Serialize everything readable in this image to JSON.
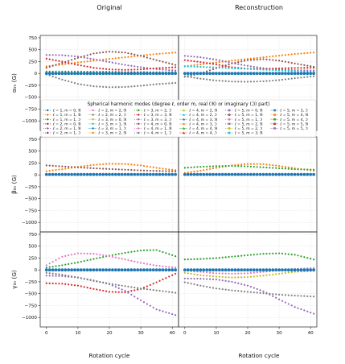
{
  "figure": {
    "column_titles": [
      "Original",
      "Reconstruction"
    ],
    "row_ylabels": [
      "αₗₘ (G)",
      "βₗₘ (G)",
      "γₗₘ (G)"
    ],
    "xlabel": "Rotation cycle",
    "legend_title": "Spherical harmonic modes (degree ℓ, order m, real (ℜ) or imaginary (ℑ) part)"
  },
  "legend": {
    "placement": "inside top row, lower half, spanning both columns",
    "entries": [
      {
        "label": "ℓ = 1, m = 0, ℜ",
        "color": "#1f77b4"
      },
      {
        "label": "ℓ = 1, m = 1, ℜ",
        "color": "#ff7f0e"
      },
      {
        "label": "ℓ = 1, m = 1, ℑ",
        "color": "#2ca02c"
      },
      {
        "label": "ℓ = 2, m = 0, ℜ",
        "color": "#d62728"
      },
      {
        "label": "ℓ = 2, m = 1, ℜ",
        "color": "#9467bd"
      },
      {
        "label": "ℓ = 2, m = 1, ℑ",
        "color": "#8c564b"
      },
      {
        "label": "ℓ = 2, m = 2, ℜ",
        "color": "#e377c2"
      },
      {
        "label": "ℓ = 2, m = 2, ℑ",
        "color": "#7f7f7f"
      },
      {
        "label": "ℓ = 3, m = 0, ℜ",
        "color": "#bcbd22"
      },
      {
        "label": "ℓ = 3, m = 1, ℜ",
        "color": "#17becf"
      },
      {
        "label": "ℓ = 3, m = 1, ℑ",
        "color": "#1f77b4"
      },
      {
        "label": "ℓ = 3, m = 2, ℜ",
        "color": "#ff7f0e"
      },
      {
        "label": "ℓ = 3, m = 2, ℑ",
        "color": "#2ca02c"
      },
      {
        "label": "ℓ = 3, m = 3, ℜ",
        "color": "#d62728"
      },
      {
        "label": "ℓ = 3, m = 3, ℑ",
        "color": "#9467bd"
      },
      {
        "label": "ℓ = 4, m = 0, ℜ",
        "color": "#8c564b"
      },
      {
        "label": "ℓ = 4, m = 1, ℜ",
        "color": "#e377c2"
      },
      {
        "label": "ℓ = 4, m = 1, ℑ",
        "color": "#7f7f7f"
      },
      {
        "label": "ℓ = 4, m = 2, ℜ",
        "color": "#bcbd22"
      },
      {
        "label": "ℓ = 4, m = 2, ℑ",
        "color": "#17becf"
      },
      {
        "label": "ℓ = 4, m = 3, ℜ",
        "color": "#1f77b4"
      },
      {
        "label": "ℓ = 4, m = 3, ℑ",
        "color": "#ff7f0e"
      },
      {
        "label": "ℓ = 4, m = 4, ℜ",
        "color": "#2ca02c"
      },
      {
        "label": "ℓ = 4, m = 4, ℑ",
        "color": "#d62728"
      },
      {
        "label": "ℓ = 5, m = 0, ℜ",
        "color": "#9467bd"
      },
      {
        "label": "ℓ = 5, m = 1, ℜ",
        "color": "#8c564b"
      },
      {
        "label": "ℓ = 5, m = 1, ℑ",
        "color": "#e377c2"
      },
      {
        "label": "ℓ = 5, m = 2, ℜ",
        "color": "#7f7f7f"
      },
      {
        "label": "ℓ = 5, m = 2, ℑ",
        "color": "#bcbd22"
      },
      {
        "label": "ℓ = 5, m = 3, ℜ",
        "color": "#17becf"
      },
      {
        "label": "ℓ = 5, m = 3, ℑ",
        "color": "#1f77b4"
      },
      {
        "label": "ℓ = 5, m = 4, ℜ",
        "color": "#ff7f0e"
      },
      {
        "label": "ℓ = 5, m = 4, ℑ",
        "color": "#2ca02c"
      },
      {
        "label": "ℓ = 5, m = 5, ℜ",
        "color": "#d62728"
      },
      {
        "label": "ℓ = 5, m = 5, ℑ",
        "color": "#9467bd"
      }
    ]
  },
  "chart_data": [
    {
      "type": "scatter",
      "panel": "alpha-original",
      "title": "Original",
      "ylabel": "αₗₘ (G)",
      "xlabel": "",
      "xlim": [
        -2,
        42
      ],
      "ylim": [
        -1200,
        800
      ],
      "grid": true,
      "xticks": [
        0,
        10,
        20,
        30,
        40
      ],
      "yticks": [
        750,
        500,
        250,
        0,
        -250,
        -500,
        -750,
        -1000
      ],
      "series": [
        {
          "color": "#ff7f0e",
          "x": [
            0,
            5,
            10,
            15,
            20,
            25,
            30,
            35,
            41
          ],
          "y": [
            150,
            190,
            230,
            270,
            305,
            340,
            375,
            410,
            440
          ]
        },
        {
          "color": "#9467bd",
          "x": [
            0,
            5,
            10,
            15,
            20,
            25,
            30,
            35,
            41
          ],
          "y": [
            390,
            385,
            355,
            300,
            240,
            180,
            130,
            90,
            60
          ]
        },
        {
          "color": "#8c564b",
          "x": [
            0,
            5,
            10,
            15,
            20,
            25,
            30,
            35,
            41
          ],
          "y": [
            120,
            220,
            330,
            420,
            460,
            440,
            370,
            280,
            180
          ]
        },
        {
          "color": "#d62728",
          "x": [
            0,
            5,
            10,
            15,
            20,
            25,
            30,
            35,
            41
          ],
          "y": [
            310,
            250,
            180,
            120,
            85,
            75,
            85,
            110,
            130
          ]
        },
        {
          "color": "#7f7f7f",
          "x": [
            0,
            5,
            10,
            15,
            20,
            25,
            30,
            35,
            41
          ],
          "y": [
            -20,
            -130,
            -220,
            -270,
            -290,
            -285,
            -260,
            -225,
            -200
          ]
        },
        {
          "color": "#2ca02c",
          "x": [
            0,
            5,
            10,
            15,
            20,
            25,
            30,
            35,
            41
          ],
          "y": [
            40,
            40,
            40,
            35,
            35,
            30,
            30,
            25,
            25
          ]
        },
        {
          "color": "#1f77b4",
          "x": [
            0,
            5,
            10,
            15,
            20,
            25,
            30,
            35,
            41
          ],
          "y": [
            0,
            0,
            0,
            0,
            0,
            0,
            0,
            0,
            0
          ]
        }
      ]
    },
    {
      "type": "scatter",
      "panel": "alpha-reconstruction",
      "title": "Reconstruction",
      "ylabel": "",
      "xlabel": "",
      "xlim": [
        -2,
        42
      ],
      "ylim": [
        -1200,
        800
      ],
      "grid": true,
      "xticks": [
        0,
        10,
        20,
        30,
        40
      ],
      "yticks": [
        750,
        500,
        250,
        0,
        -250,
        -500,
        -750,
        -1000
      ],
      "series": [
        {
          "color": "#ff7f0e",
          "x": [
            0,
            5,
            10,
            15,
            20,
            25,
            30,
            35,
            41
          ],
          "y": [
            150,
            190,
            230,
            270,
            305,
            340,
            375,
            410,
            440
          ]
        },
        {
          "color": "#9467bd",
          "x": [
            0,
            5,
            10,
            15,
            20,
            25,
            30,
            35,
            41
          ],
          "y": [
            370,
            340,
            290,
            220,
            160,
            110,
            80,
            70,
            60
          ]
        },
        {
          "color": "#8c564b",
          "x": [
            0,
            5,
            10,
            15,
            20,
            25,
            30,
            35,
            41
          ],
          "y": [
            -70,
            0,
            110,
            210,
            280,
            300,
            270,
            210,
            140
          ]
        },
        {
          "color": "#d62728",
          "x": [
            0,
            5,
            10,
            15,
            20,
            25,
            30,
            35,
            41
          ],
          "y": [
            280,
            240,
            190,
            130,
            100,
            95,
            105,
            115,
            120
          ]
        },
        {
          "color": "#7f7f7f",
          "x": [
            0,
            5,
            10,
            15,
            20,
            25,
            30,
            35,
            41
          ],
          "y": [
            -60,
            -110,
            -150,
            -170,
            -175,
            -165,
            -140,
            -100,
            -60
          ]
        },
        {
          "color": "#17becf",
          "x": [
            0,
            5,
            10,
            15,
            20,
            25,
            30,
            35,
            41
          ],
          "y": [
            150,
            140,
            125,
            110,
            95,
            80,
            65,
            50,
            40
          ]
        },
        {
          "color": "#1f77b4",
          "x": [
            0,
            5,
            10,
            15,
            20,
            25,
            30,
            35,
            41
          ],
          "y": [
            0,
            0,
            0,
            0,
            0,
            0,
            0,
            0,
            0
          ]
        }
      ]
    },
    {
      "type": "scatter",
      "panel": "beta-original",
      "title": "",
      "ylabel": "βₗₘ (G)",
      "xlabel": "",
      "xlim": [
        -2,
        42
      ],
      "ylim": [
        -1200,
        800
      ],
      "grid": true,
      "xticks": [
        0,
        10,
        20,
        30,
        40
      ],
      "yticks": [
        750,
        500,
        250,
        0,
        -250,
        -500,
        -750,
        -1000
      ],
      "series": [
        {
          "color": "#ff7f0e",
          "x": [
            0,
            5,
            10,
            15,
            20,
            25,
            30,
            35,
            41
          ],
          "y": [
            80,
            120,
            170,
            210,
            235,
            230,
            200,
            150,
            100
          ]
        },
        {
          "color": "#8c564b",
          "x": [
            0,
            5,
            10,
            15,
            20,
            25,
            30,
            35,
            41
          ],
          "y": [
            200,
            180,
            160,
            140,
            125,
            110,
            95,
            85,
            75
          ]
        },
        {
          "color": "#1f77b4",
          "x": [
            0,
            5,
            10,
            15,
            20,
            25,
            30,
            35,
            41
          ],
          "y": [
            10,
            10,
            10,
            10,
            10,
            10,
            10,
            10,
            10
          ]
        }
      ]
    },
    {
      "type": "scatter",
      "panel": "beta-reconstruction",
      "title": "",
      "ylabel": "",
      "xlabel": "",
      "xlim": [
        -2,
        42
      ],
      "ylim": [
        -1200,
        800
      ],
      "grid": true,
      "xticks": [
        0,
        10,
        20,
        30,
        40
      ],
      "yticks": [
        750,
        500,
        250,
        0,
        -250,
        -500,
        -750,
        -1000
      ],
      "series": [
        {
          "color": "#ff7f0e",
          "x": [
            0,
            5,
            10,
            15,
            20,
            25,
            30,
            35,
            41
          ],
          "y": [
            40,
            90,
            150,
            200,
            230,
            225,
            190,
            140,
            90
          ]
        },
        {
          "color": "#2ca02c",
          "x": [
            0,
            5,
            10,
            15,
            20,
            25,
            30,
            35,
            41
          ],
          "y": [
            150,
            170,
            185,
            190,
            180,
            160,
            140,
            120,
            110
          ]
        },
        {
          "color": "#1f77b4",
          "x": [
            0,
            5,
            10,
            15,
            20,
            25,
            30,
            35,
            41
          ],
          "y": [
            10,
            10,
            10,
            10,
            10,
            10,
            10,
            10,
            10
          ]
        }
      ]
    },
    {
      "type": "scatter",
      "panel": "gamma-original",
      "title": "",
      "ylabel": "γₗₘ (G)",
      "xlabel": "Rotation cycle",
      "xlim": [
        -2,
        42
      ],
      "ylim": [
        -1200,
        800
      ],
      "grid": true,
      "xticks": [
        0,
        10,
        20,
        30,
        40
      ],
      "yticks": [
        750,
        500,
        250,
        0,
        -250,
        -500,
        -750,
        -1000
      ],
      "series": [
        {
          "color": "#2ca02c",
          "x": [
            0,
            5,
            10,
            15,
            20,
            25,
            30,
            35,
            41
          ],
          "y": [
            50,
            100,
            160,
            230,
            300,
            360,
            410,
            420,
            290
          ]
        },
        {
          "color": "#e377c2",
          "x": [
            0,
            5,
            10,
            15,
            20,
            25,
            30,
            35,
            41
          ],
          "y": [
            100,
            280,
            350,
            340,
            290,
            220,
            150,
            90,
            50
          ]
        },
        {
          "color": "#d62728",
          "x": [
            0,
            5,
            10,
            15,
            20,
            25,
            30,
            35,
            41
          ],
          "y": [
            -280,
            -290,
            -330,
            -400,
            -460,
            -470,
            -400,
            -260,
            -80
          ]
        },
        {
          "color": "#9467bd",
          "x": [
            0,
            5,
            10,
            15,
            20,
            25,
            30,
            35,
            41
          ],
          "y": [
            -120,
            -130,
            -160,
            -220,
            -300,
            -440,
            -640,
            -830,
            -950
          ]
        },
        {
          "color": "#7f7f7f",
          "x": [
            0,
            5,
            10,
            15,
            20,
            25,
            30,
            35,
            41
          ],
          "y": [
            -60,
            -100,
            -160,
            -230,
            -290,
            -340,
            -390,
            -430,
            -480
          ]
        },
        {
          "color": "#1f77b4",
          "x": [
            0,
            5,
            10,
            15,
            20,
            25,
            30,
            35,
            41
          ],
          "y": [
            0,
            0,
            0,
            0,
            0,
            0,
            0,
            0,
            0
          ]
        }
      ]
    },
    {
      "type": "scatter",
      "panel": "gamma-reconstruction",
      "title": "",
      "ylabel": "",
      "xlabel": "Rotation cycle",
      "xlim": [
        -2,
        42
      ],
      "ylim": [
        -1200,
        800
      ],
      "grid": true,
      "xticks": [
        0,
        10,
        20,
        30,
        40
      ],
      "yticks": [
        750,
        500,
        250,
        0,
        -250,
        -500,
        -750,
        -1000
      ],
      "series": [
        {
          "color": "#2ca02c",
          "x": [
            0,
            5,
            10,
            15,
            20,
            25,
            30,
            35,
            41
          ],
          "y": [
            220,
            230,
            250,
            280,
            310,
            340,
            350,
            320,
            220
          ]
        },
        {
          "color": "#bcbd22",
          "x": [
            0,
            5,
            10,
            15,
            20,
            25,
            30,
            35,
            41
          ],
          "y": [
            -60,
            -110,
            -140,
            -160,
            -150,
            -120,
            -80,
            -40,
            -20
          ]
        },
        {
          "color": "#9467bd",
          "x": [
            0,
            5,
            10,
            15,
            20,
            25,
            30,
            35,
            41
          ],
          "y": [
            -180,
            -185,
            -200,
            -250,
            -330,
            -450,
            -620,
            -780,
            -920
          ]
        },
        {
          "color": "#7f7f7f",
          "x": [
            0,
            5,
            10,
            15,
            20,
            25,
            30,
            35,
            41
          ],
          "y": [
            -260,
            -330,
            -390,
            -430,
            -460,
            -490,
            -520,
            -540,
            -560
          ]
        },
        {
          "color": "#e377c2",
          "x": [
            0,
            5,
            10,
            15,
            20,
            25,
            30,
            35,
            41
          ],
          "y": [
            -10,
            -40,
            -70,
            -80,
            -70,
            -40,
            -10,
            20,
            40
          ]
        },
        {
          "color": "#1f77b4",
          "x": [
            0,
            5,
            10,
            15,
            20,
            25,
            30,
            35,
            41
          ],
          "y": [
            0,
            0,
            0,
            0,
            0,
            0,
            0,
            0,
            0
          ]
        }
      ]
    }
  ]
}
